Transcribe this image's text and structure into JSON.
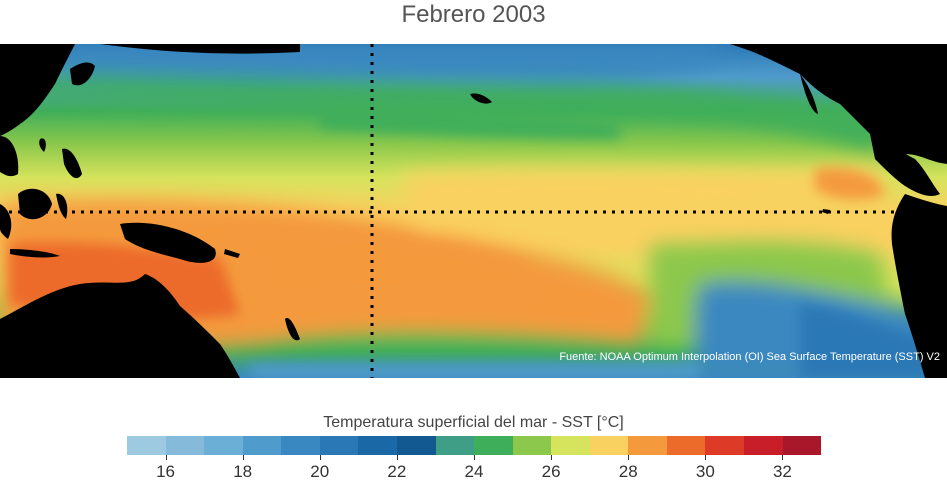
{
  "title": "Febrero 2003",
  "map": {
    "source_text": "Fuente: NOAA Optimum Interpolation (OI) Sea Surface Temperature (SST) V2",
    "land_color": "#000000",
    "reference_lines": [
      "equator",
      "dateline-meridian"
    ]
  },
  "colorbar": {
    "title": "Temperatura superficial del mar - SST  [°C]",
    "min": 15,
    "max": 33,
    "step": 1,
    "colors": [
      "#9ecae1",
      "#85badb",
      "#6baed6",
      "#4f9bcc",
      "#3a88c1",
      "#2a78b5",
      "#1b68a6",
      "#125891",
      "#3f9e86",
      "#3fae5a",
      "#8cc84b",
      "#d6e35c",
      "#f9d160",
      "#f49a3c",
      "#ec6a2a",
      "#dd3b28",
      "#c81e2a",
      "#a8182a"
    ],
    "tick_labels": [
      "16",
      "18",
      "20",
      "22",
      "24",
      "26",
      "28",
      "30",
      "32"
    ],
    "tick_values": [
      16,
      18,
      20,
      22,
      24,
      26,
      28,
      30,
      32
    ]
  }
}
